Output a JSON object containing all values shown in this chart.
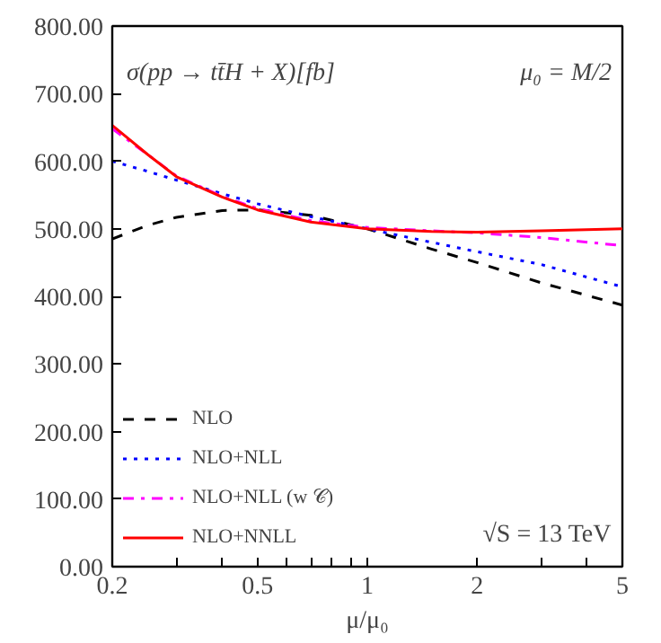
{
  "chart_data": {
    "type": "line",
    "xlabel": "μ/μ₀",
    "log": "x",
    "xlim": [
      0.2,
      5
    ],
    "ylim": [
      0,
      800
    ],
    "xticks": [
      0.2,
      {
        "value": 0.3,
        "label": null
      },
      {
        "value": 0.4,
        "label": null
      },
      0.5,
      {
        "value": 0.6,
        "label": null
      },
      {
        "value": 0.7,
        "label": null
      },
      {
        "value": 0.8,
        "label": null
      },
      {
        "value": 0.9,
        "label": null
      },
      1,
      2,
      {
        "value": 3,
        "label": null
      },
      {
        "value": 4,
        "label": null
      },
      5
    ],
    "yticks": [
      {
        "value": 0,
        "label": "0.00"
      },
      {
        "value": 100,
        "label": "100.00"
      },
      {
        "value": 200,
        "label": "200.00"
      },
      {
        "value": 300,
        "label": "300.00"
      },
      {
        "value": 400,
        "label": "400.00"
      },
      {
        "value": 500,
        "label": "500.00"
      },
      {
        "value": 600,
        "label": "600.00"
      },
      {
        "value": 700,
        "label": "700.00"
      },
      {
        "value": 800,
        "label": "800.00"
      }
    ],
    "grid": false,
    "legend": "bottom left",
    "annotations": [
      "σ(pp → tt̄H + X)[fb]",
      "μ₀ = M/2",
      "√S = 13 TeV"
    ],
    "x": [
      0.2,
      0.25,
      0.3,
      0.4,
      0.5,
      0.7,
      1,
      1.5,
      2,
      3,
      5
    ],
    "series": [
      {
        "name": "NLO",
        "color": "#000000",
        "line_style": "dashed",
        "values": [
          485,
          505,
          517,
          527,
          528,
          520,
          500,
          470,
          450,
          420,
          387
        ]
      },
      {
        "name": "NLO+NLL",
        "color": "#0000ff",
        "line_style": "dotted",
        "values": [
          600,
          585,
          572,
          552,
          537,
          518,
          500,
          480,
          466,
          447,
          414
        ]
      },
      {
        "name": "NLO+NLL (w 𝒞)",
        "color": "#ff00ff",
        "line_style": "dashdot",
        "values": [
          648,
          610,
          578,
          548,
          530,
          512,
          502,
          497,
          494,
          487,
          475
        ]
      },
      {
        "name": "NLO+NNLL",
        "color": "#ff0000",
        "line_style": "solid",
        "values": [
          653,
          610,
          577,
          547,
          528,
          510,
          500,
          496,
          495,
          497,
          500
        ]
      }
    ]
  }
}
